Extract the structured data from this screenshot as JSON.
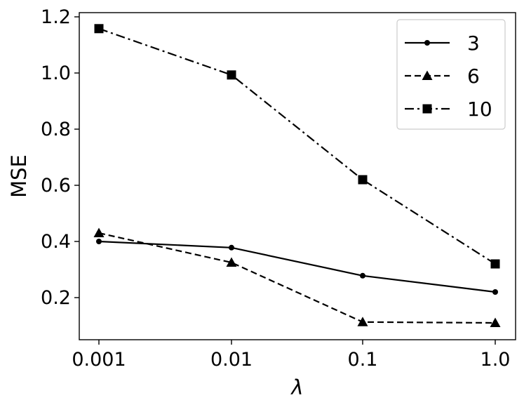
{
  "chart_data": {
    "type": "line",
    "categories": [
      "0.001",
      "0.01",
      "0.1",
      "1.0"
    ],
    "xlabel": "λ",
    "ylabel": "MSE",
    "ylim": [
      0.05,
      1.215
    ],
    "yticks": [
      "0.2",
      "0.4",
      "0.6",
      "0.8",
      "1.0",
      "1.2"
    ],
    "ytick_values": [
      0.2,
      0.4,
      0.6,
      0.8,
      1.0,
      1.2
    ],
    "grid": false,
    "legend": "top-right",
    "series": [
      {
        "name": "3",
        "values": [
          0.4,
          0.378,
          0.278,
          0.22
        ],
        "linestyle": "solid",
        "marker": "circle"
      },
      {
        "name": "6",
        "values": [
          0.43,
          0.325,
          0.113,
          0.11
        ],
        "linestyle": "dashed",
        "marker": "triangle"
      },
      {
        "name": "10",
        "values": [
          1.158,
          0.993,
          0.62,
          0.32
        ],
        "linestyle": "dashdot",
        "marker": "square"
      }
    ],
    "colors": {
      "line": "#000000",
      "axes": "#000000",
      "legend_border": "#cccccc"
    }
  }
}
